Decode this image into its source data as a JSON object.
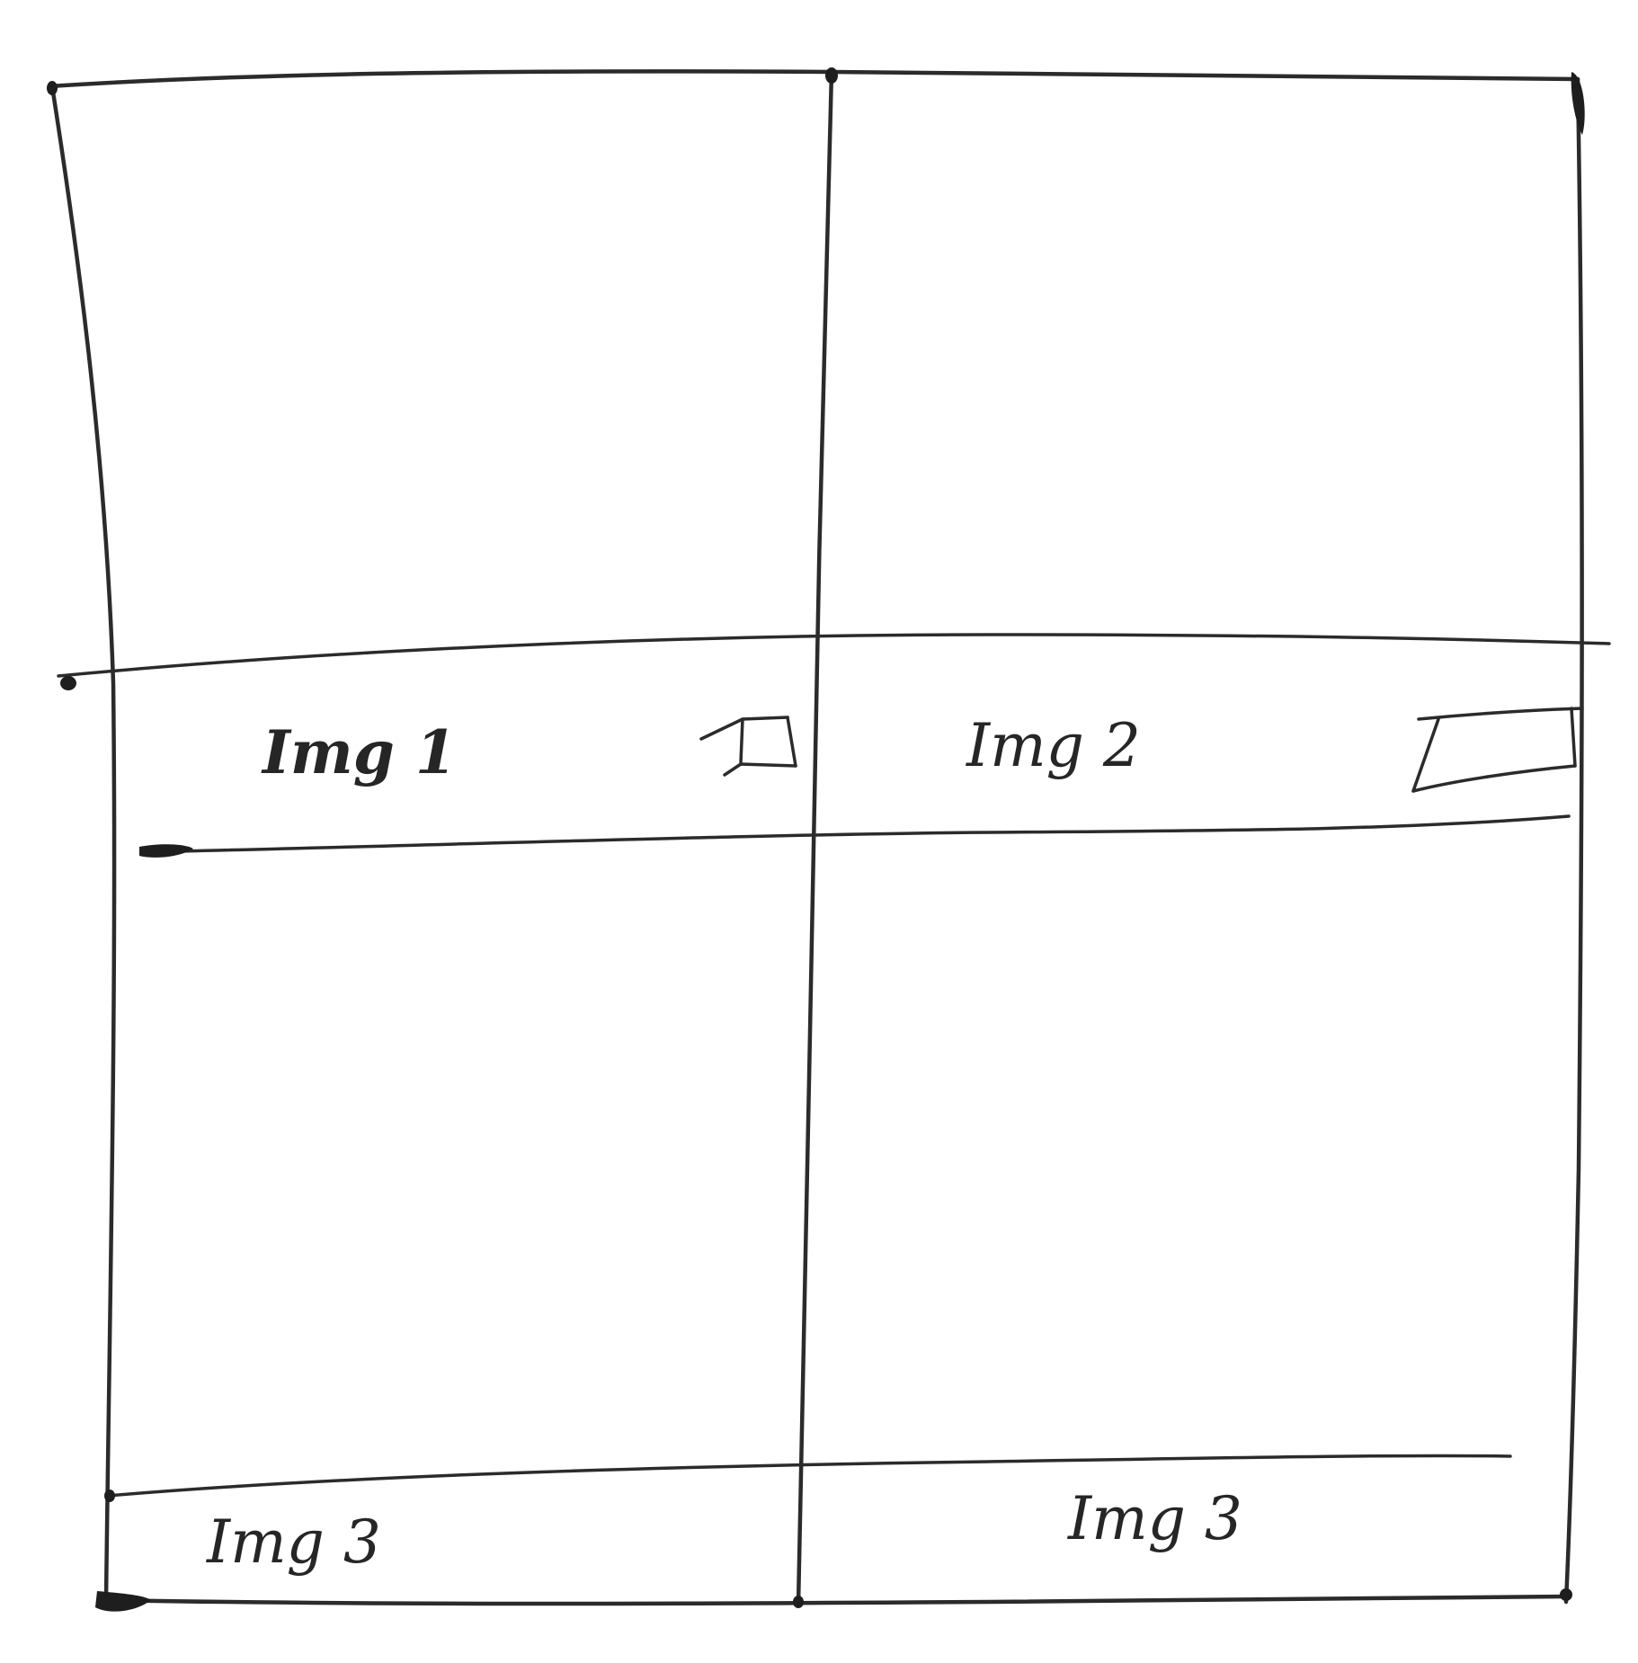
{
  "wireframe": {
    "ink_color": "#2b2b2b",
    "background": "#ffffff",
    "labels": {
      "cell_1": "Img 1",
      "cell_2": "Img 2",
      "cell_3": "Img 3",
      "cell_4": "Img 3"
    },
    "checkbox_icons": [
      "checkbox-icon",
      "checkbox-icon"
    ]
  }
}
